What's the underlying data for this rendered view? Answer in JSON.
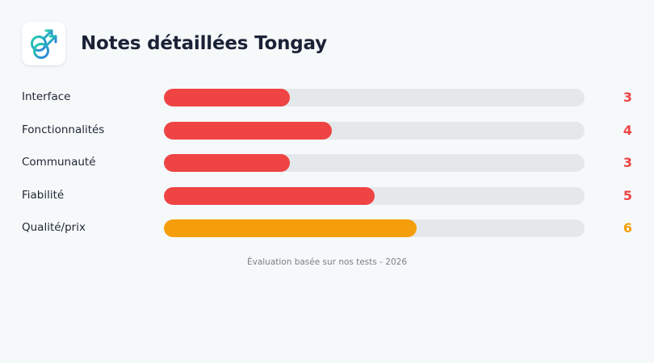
{
  "header": {
    "title": "Notes détaillées Tongay",
    "logo_icon": "male-male-symbol-icon"
  },
  "colors": {
    "red": "#ef4444",
    "orange": "#f59e0b",
    "track": "#e5e8ea",
    "logo_gradient": [
      "#22d3a6",
      "#2f7ee0"
    ]
  },
  "chart_data": {
    "type": "bar",
    "orientation": "horizontal",
    "title": "Notes détaillées Tongay",
    "categories": [
      "Interface",
      "Fonctionnalités",
      "Communauté",
      "Fiabilité",
      "Qualité/prix"
    ],
    "values": [
      3,
      4,
      3,
      5,
      6
    ],
    "value_labels": [
      "3",
      "4",
      "3",
      "5",
      "6"
    ],
    "xlim": [
      0,
      10
    ],
    "bar_colors": [
      "#ef4444",
      "#ef4444",
      "#ef4444",
      "#ef4444",
      "#f59e0b"
    ],
    "grid": false,
    "legend": "none"
  },
  "footnote": "Évaluation basée sur nos tests - 2026"
}
